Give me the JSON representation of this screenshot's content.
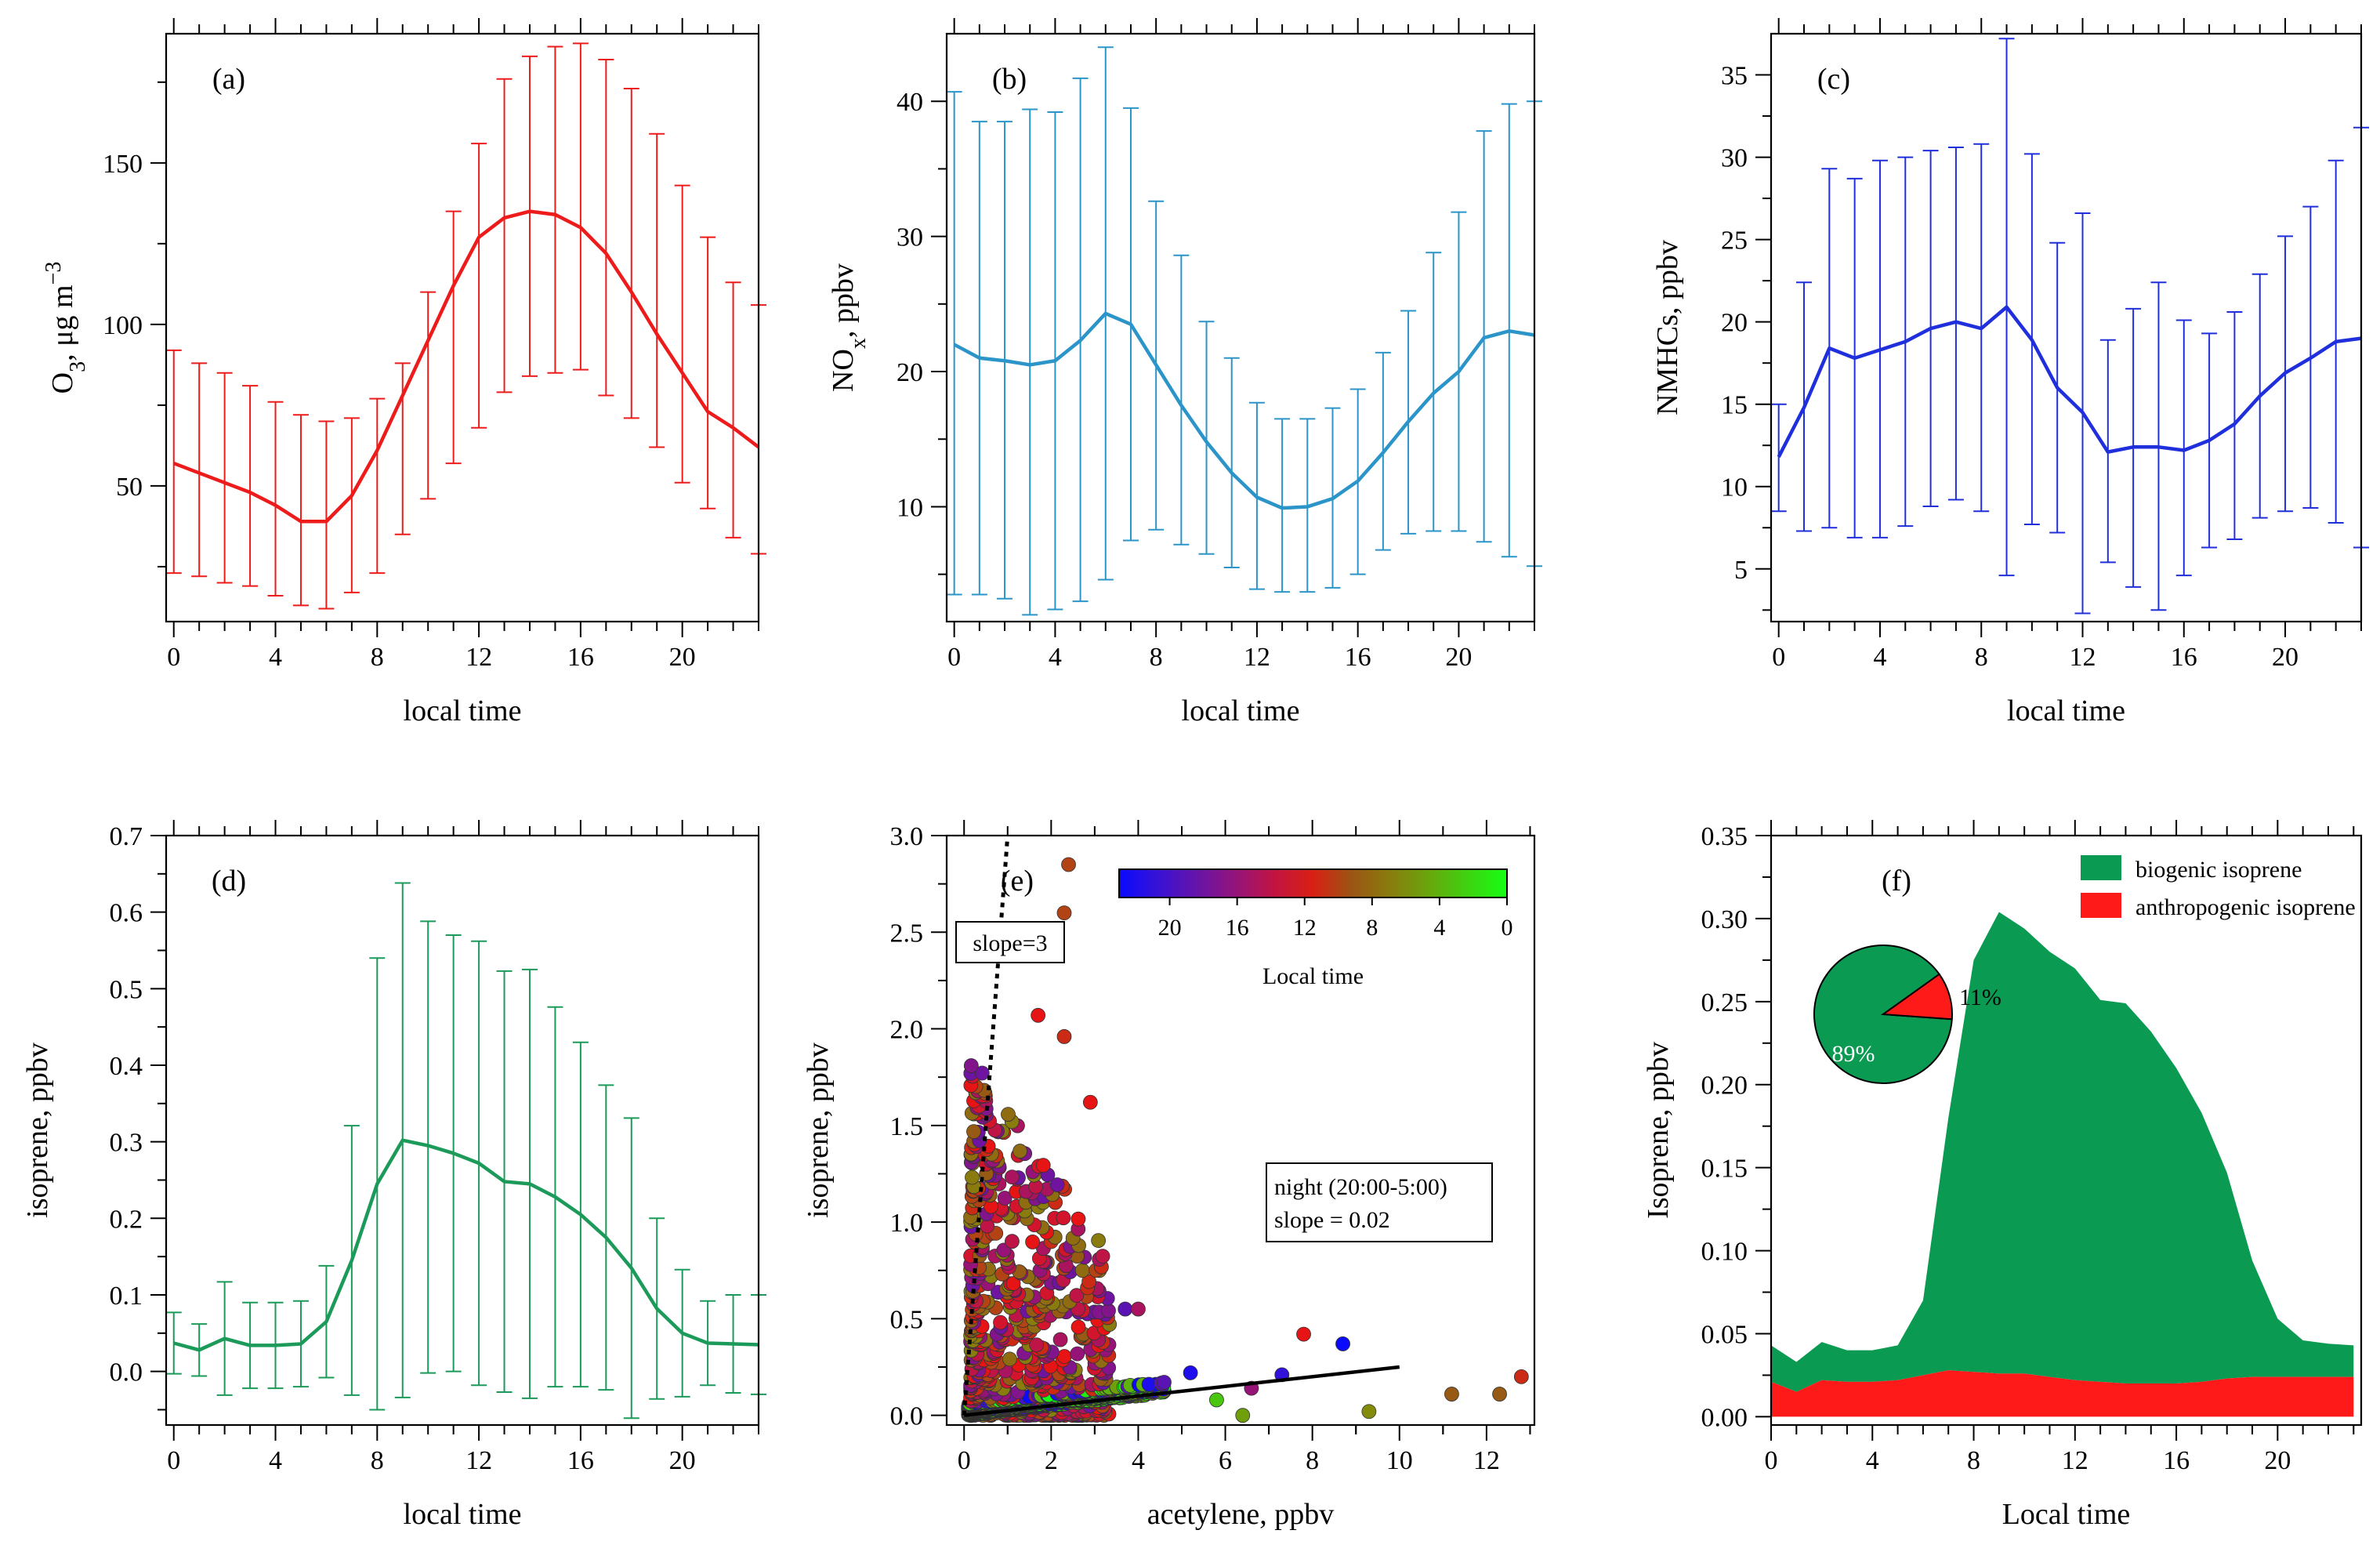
{
  "colors": {
    "o3": "#ee1b1b",
    "nox": "#2b95c9",
    "nmhc": "#1f2fdc",
    "isoprene": "#1c9a5a",
    "biogenic": "#0b9a52",
    "anthropogenic": "#ff1a1a"
  },
  "chart_data": [
    {
      "id": "a",
      "type": "line",
      "panel_label": "(a)",
      "xlabel": "local time",
      "ylabel": "O3, μg m−3",
      "ylabel_parts": {
        "a": "O",
        "sub": "3",
        "b": ", μg m",
        "sup": "−3"
      },
      "xlim": [
        -0.3,
        23
      ],
      "ylim": [
        8,
        190
      ],
      "xticks": [
        0,
        4,
        8,
        12,
        16,
        20
      ],
      "yticks": [
        50,
        100,
        150
      ],
      "x": [
        0,
        1,
        2,
        3,
        4,
        5,
        6,
        7,
        8,
        9,
        10,
        11,
        12,
        13,
        14,
        15,
        16,
        17,
        18,
        19,
        20,
        21,
        22,
        23
      ],
      "mean": [
        57,
        54,
        51,
        48,
        44,
        39,
        39,
        47,
        61,
        78,
        95,
        112,
        127,
        133,
        135,
        134,
        130,
        122,
        110,
        97,
        85,
        73,
        68,
        62
      ],
      "upper": [
        92,
        88,
        85,
        81,
        76,
        72,
        70,
        71,
        77,
        88,
        110,
        135,
        156,
        176,
        183,
        186,
        187,
        182,
        173,
        159,
        143,
        127,
        113,
        106
      ],
      "lower": [
        23,
        22,
        20,
        19,
        16,
        13,
        12,
        17,
        23,
        35,
        46,
        57,
        68,
        79,
        84,
        85,
        86,
        78,
        71,
        62,
        51,
        43,
        34,
        29
      ]
    },
    {
      "id": "b",
      "type": "line",
      "panel_label": "(b)",
      "xlabel": "local time",
      "ylabel": "NOx, ppbv",
      "ylabel_parts": {
        "a": "NO",
        "sub": "x",
        "b": ", ppbv"
      },
      "xlim": [
        -0.3,
        23
      ],
      "ylim": [
        1.5,
        45
      ],
      "xticks": [
        0,
        4,
        8,
        12,
        16,
        20
      ],
      "yticks": [
        10,
        20,
        30,
        40
      ],
      "x": [
        0,
        1,
        2,
        3,
        4,
        5,
        6,
        7,
        8,
        9,
        10,
        11,
        12,
        13,
        14,
        15,
        16,
        17,
        18,
        19,
        20,
        21,
        22,
        23
      ],
      "mean": [
        22,
        21,
        20.8,
        20.5,
        20.8,
        22.3,
        24.3,
        23.5,
        20.5,
        17.5,
        14.8,
        12.5,
        10.7,
        9.9,
        10.0,
        10.6,
        11.9,
        14,
        16.3,
        18.4,
        20,
        22.5,
        23,
        22.7
      ],
      "upper": [
        40.7,
        38.5,
        38.5,
        39.4,
        39.2,
        41.7,
        44,
        39.5,
        32.6,
        28.6,
        23.7,
        21,
        17.7,
        16.5,
        16.5,
        17.3,
        18.7,
        21.4,
        24.5,
        28.8,
        31.8,
        37.8,
        39.8,
        40
      ],
      "lower": [
        3.5,
        3.5,
        3.2,
        2.0,
        2.4,
        3.0,
        4.6,
        7.5,
        8.3,
        7.2,
        6.5,
        5.5,
        3.9,
        3.7,
        3.7,
        4.0,
        5.0,
        6.8,
        8.0,
        8.2,
        8.2,
        7.4,
        6.3,
        5.6
      ]
    },
    {
      "id": "c",
      "type": "line",
      "panel_label": "(c)",
      "xlabel": "local time",
      "ylabel": "NMHCs, ppbv",
      "xlim": [
        -0.3,
        23
      ],
      "ylim": [
        1.8,
        37.5
      ],
      "xticks": [
        0,
        4,
        8,
        12,
        16,
        20
      ],
      "yticks": [
        5,
        10,
        15,
        20,
        25,
        30,
        35
      ],
      "x": [
        0,
        1,
        2,
        3,
        4,
        5,
        6,
        7,
        8,
        9,
        10,
        11,
        12,
        13,
        14,
        15,
        16,
        17,
        18,
        19,
        20,
        21,
        22,
        23
      ],
      "mean": [
        11.8,
        14.8,
        18.4,
        17.8,
        18.3,
        18.8,
        19.6,
        20.0,
        19.6,
        20.9,
        18.9,
        16.0,
        14.5,
        12.1,
        12.4,
        12.4,
        12.2,
        12.8,
        13.8,
        15.5,
        16.9,
        17.8,
        18.8,
        19.0
      ],
      "upper": [
        15.0,
        22.4,
        29.3,
        28.7,
        29.8,
        30.0,
        30.4,
        30.6,
        30.8,
        37.2,
        30.2,
        24.8,
        26.6,
        18.9,
        20.8,
        22.4,
        20.1,
        19.3,
        20.6,
        22.9,
        25.2,
        27.0,
        29.8,
        31.8
      ],
      "lower": [
        8.5,
        7.3,
        7.5,
        6.9,
        6.9,
        7.6,
        8.8,
        9.2,
        8.5,
        4.6,
        7.7,
        7.2,
        2.3,
        5.4,
        3.9,
        2.5,
        4.6,
        6.3,
        6.8,
        8.1,
        8.5,
        8.7,
        7.8,
        6.3
      ]
    },
    {
      "id": "d",
      "type": "line",
      "panel_label": "(d)",
      "xlabel": "local time",
      "ylabel": "isoprene, ppbv",
      "xlim": [
        -0.3,
        23
      ],
      "ylim": [
        -0.07,
        0.7
      ],
      "xticks": [
        0,
        4,
        8,
        12,
        16,
        20
      ],
      "yticks": [
        0.0,
        0.1,
        0.2,
        0.3,
        0.4,
        0.5,
        0.6,
        0.7
      ],
      "x": [
        0,
        1,
        2,
        3,
        4,
        5,
        6,
        7,
        8,
        9,
        10,
        11,
        12,
        13,
        14,
        15,
        16,
        17,
        18,
        19,
        20,
        21,
        22,
        23
      ],
      "mean": [
        0.037,
        0.028,
        0.043,
        0.034,
        0.034,
        0.036,
        0.065,
        0.145,
        0.245,
        0.302,
        0.295,
        0.285,
        0.272,
        0.248,
        0.245,
        0.228,
        0.205,
        0.175,
        0.135,
        0.082,
        0.05,
        0.037,
        0.036,
        0.035
      ],
      "upper": [
        0.077,
        0.062,
        0.117,
        0.09,
        0.09,
        0.092,
        0.138,
        0.321,
        0.54,
        0.638,
        0.588,
        0.57,
        0.562,
        0.523,
        0.525,
        0.476,
        0.43,
        0.374,
        0.331,
        0.2,
        0.133,
        0.092,
        0.1,
        0.1
      ],
      "lower": [
        -0.003,
        -0.006,
        -0.031,
        -0.022,
        -0.022,
        -0.02,
        -0.008,
        -0.031,
        -0.05,
        -0.034,
        -0.002,
        0.0,
        -0.018,
        -0.027,
        -0.035,
        -0.02,
        -0.02,
        -0.024,
        -0.061,
        -0.036,
        -0.033,
        -0.018,
        -0.028,
        -0.03
      ]
    },
    {
      "id": "e",
      "type": "scatter",
      "panel_label": "(e)",
      "xlabel": "acetylene, ppbv",
      "ylabel": "isoprene, ppbv",
      "xlim": [
        -0.4,
        13.1
      ],
      "ylim": [
        -0.05,
        3.0
      ],
      "xticks": [
        0,
        2,
        4,
        6,
        8,
        10,
        12
      ],
      "yticks": [
        0.0,
        0.5,
        1.0,
        1.5,
        2.0,
        2.5,
        3.0
      ],
      "colorbar": {
        "label": "Local time",
        "ticks": [
          20,
          16,
          12,
          8,
          4,
          0
        ],
        "range": [
          23,
          0
        ]
      },
      "annotation_slope3": "slope=3",
      "annotation_night": [
        "night (20:00-5:00)",
        "slope = 0.02"
      ],
      "fit_lines": [
        {
          "name": "slope=3",
          "style": "dotted",
          "x": [
            0.0,
            1.0
          ],
          "y": [
            0.0,
            3.0
          ]
        },
        {
          "name": "night",
          "style": "solid",
          "x": [
            0.0,
            10.0
          ],
          "y": [
            0.0,
            0.25
          ]
        }
      ],
      "outliers": [
        {
          "x": 2.4,
          "y": 2.85,
          "t": 10
        },
        {
          "x": 2.3,
          "y": 2.6,
          "t": 10
        },
        {
          "x": 1.7,
          "y": 2.07,
          "t": 12
        },
        {
          "x": 2.3,
          "y": 1.96,
          "t": 11
        },
        {
          "x": 2.9,
          "y": 1.62,
          "t": 12
        },
        {
          "x": 3.7,
          "y": 0.55,
          "t": 19
        },
        {
          "x": 4.0,
          "y": 0.55,
          "t": 15
        },
        {
          "x": 7.8,
          "y": 0.42,
          "t": 12
        },
        {
          "x": 8.7,
          "y": 0.37,
          "t": 23
        },
        {
          "x": 12.8,
          "y": 0.2,
          "t": 11
        },
        {
          "x": 11.2,
          "y": 0.11,
          "t": 9
        },
        {
          "x": 12.3,
          "y": 0.11,
          "t": 9
        },
        {
          "x": 9.3,
          "y": 0.02,
          "t": 6
        },
        {
          "x": 7.3,
          "y": 0.21,
          "t": 21
        },
        {
          "x": 5.2,
          "y": 0.22,
          "t": 22
        },
        {
          "x": 6.6,
          "y": 0.14,
          "t": 16
        },
        {
          "x": 5.8,
          "y": 0.08,
          "t": 3
        },
        {
          "x": 6.4,
          "y": 0.0,
          "t": 5
        }
      ]
    },
    {
      "id": "f",
      "type": "area",
      "panel_label": "(f)",
      "xlabel": "Local time",
      "ylabel": "Isoprene, ppbv",
      "xlim": [
        0,
        23.3
      ],
      "ylim": [
        -0.005,
        0.35
      ],
      "xticks": [
        0,
        4,
        8,
        12,
        16,
        20
      ],
      "yticks": [
        0.0,
        0.05,
        0.1,
        0.15,
        0.2,
        0.25,
        0.3,
        0.35
      ],
      "x": [
        0,
        1,
        2,
        3,
        4,
        5,
        6,
        7,
        8,
        9,
        10,
        11,
        12,
        13,
        14,
        15,
        16,
        17,
        18,
        19,
        20,
        21,
        22,
        23
      ],
      "series": [
        {
          "name": "anthropogenic isoprene",
          "values": [
            0.021,
            0.015,
            0.022,
            0.021,
            0.021,
            0.022,
            0.025,
            0.028,
            0.027,
            0.026,
            0.026,
            0.024,
            0.022,
            0.021,
            0.02,
            0.02,
            0.02,
            0.021,
            0.023,
            0.024,
            0.024,
            0.024,
            0.024,
            0.024
          ]
        },
        {
          "name": "biogenic isoprene",
          "values": [
            0.022,
            0.018,
            0.023,
            0.019,
            0.019,
            0.021,
            0.045,
            0.152,
            0.248,
            0.278,
            0.268,
            0.256,
            0.248,
            0.23,
            0.229,
            0.212,
            0.19,
            0.162,
            0.124,
            0.07,
            0.035,
            0.022,
            0.02,
            0.019
          ]
        }
      ],
      "legend": [
        "biogenic isoprene",
        "anthropogenic isoprene"
      ],
      "pie": {
        "slices": [
          {
            "name": "biogenic",
            "value": 89,
            "label": "89%"
          },
          {
            "name": "anthropogenic",
            "value": 11,
            "label": "11%"
          }
        ]
      }
    }
  ]
}
